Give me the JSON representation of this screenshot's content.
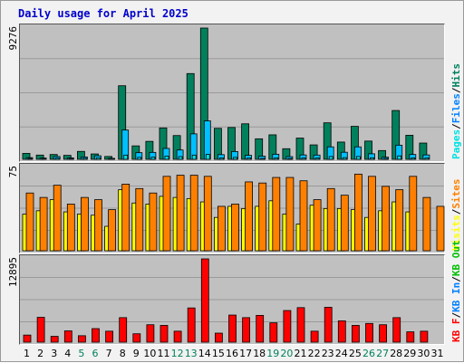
{
  "title": "Daily usage for April 2025",
  "colors": {
    "hits": "#00805c",
    "files": "#00c0ff",
    "pages": "#00e0e0",
    "visits": "#ffff00",
    "sites": "#ff8000",
    "kb_f": "#ff0000",
    "kb_in": "#0080ff",
    "kb_out": "#00c000",
    "weekend": "#00805c",
    "weekday": "#000000"
  },
  "chart_data": [
    {
      "type": "bar",
      "panel": "top",
      "y_max_label": "9276",
      "ylim": [
        0,
        9276
      ],
      "legend": [
        {
          "label": "Pages",
          "color": "#00e0e0"
        },
        {
          "label": "/",
          "color": "#000000"
        },
        {
          "label": "Files",
          "color": "#0080ff"
        },
        {
          "label": "/",
          "color": "#000000"
        },
        {
          "label": "Hits",
          "color": "#00805c"
        }
      ],
      "categories": [
        "1",
        "2",
        "3",
        "4",
        "5",
        "6",
        "7",
        "8",
        "9",
        "10",
        "11",
        "12",
        "13",
        "14",
        "15",
        "16",
        "17",
        "18",
        "19",
        "20",
        "21",
        "22",
        "23",
        "24",
        "25",
        "26",
        "27",
        "28",
        "29",
        "30",
        "31"
      ],
      "series": [
        {
          "name": "Hits",
          "values": [
            420,
            300,
            340,
            280,
            560,
            380,
            200,
            5200,
            950,
            1270,
            2220,
            1680,
            6060,
            9276,
            2190,
            2250,
            2510,
            1450,
            1730,
            750,
            1500,
            1020,
            2580,
            1220,
            2330,
            1290,
            620,
            3450,
            1700,
            1150,
            0
          ]
        },
        {
          "name": "Files",
          "values": [
            120,
            90,
            200,
            100,
            170,
            250,
            60,
            2070,
            470,
            490,
            770,
            660,
            1800,
            2720,
            330,
            550,
            280,
            220,
            360,
            190,
            310,
            300,
            880,
            500,
            880,
            390,
            150,
            1000,
            340,
            310,
            0
          ]
        },
        {
          "name": "Pages",
          "values": [
            60,
            45,
            90,
            50,
            80,
            110,
            30,
            300,
            140,
            150,
            220,
            190,
            300,
            350,
            100,
            140,
            90,
            70,
            100,
            60,
            90,
            90,
            200,
            120,
            200,
            110,
            50,
            240,
            100,
            90,
            0
          ]
        }
      ]
    },
    {
      "type": "bar",
      "panel": "middle",
      "y_max_label": "75",
      "ylim": [
        0,
        75
      ],
      "legend": [
        {
          "label": "Visits",
          "color": "#ffff00"
        },
        {
          "label": "/",
          "color": "#000000"
        },
        {
          "label": "Sites",
          "color": "#ff8000"
        }
      ],
      "categories": [
        "1",
        "2",
        "3",
        "4",
        "5",
        "6",
        "7",
        "8",
        "9",
        "10",
        "11",
        "12",
        "13",
        "14",
        "15",
        "16",
        "17",
        "18",
        "19",
        "20",
        "21",
        "22",
        "23",
        "24",
        "25",
        "26",
        "27",
        "28",
        "29",
        "30",
        "31"
      ],
      "series": [
        {
          "name": "Visits",
          "values": [
            33,
            36,
            46,
            35,
            33,
            32,
            22,
            55,
            43,
            42,
            49,
            48,
            47,
            44,
            30,
            40,
            38,
            40,
            45,
            33,
            24,
            41,
            38,
            38,
            37,
            30,
            36,
            44,
            35,
            0,
            0
          ]
        },
        {
          "name": "Sites",
          "values": [
            52,
            48,
            59,
            42,
            48,
            46,
            37,
            60,
            56,
            52,
            67,
            68,
            68,
            67,
            40,
            42,
            62,
            61,
            66,
            66,
            63,
            46,
            56,
            50,
            69,
            67,
            58,
            55,
            67,
            48,
            40
          ]
        }
      ]
    },
    {
      "type": "bar",
      "panel": "bottom",
      "y_max_label": "12895",
      "ylim": [
        0,
        12895
      ],
      "legend": [
        {
          "label": "KB F",
          "color": "#ff0000"
        },
        {
          "label": "/",
          "color": "#000000"
        },
        {
          "label": "KB In",
          "color": "#0080ff"
        },
        {
          "label": "/",
          "color": "#000000"
        },
        {
          "label": "KB Out",
          "color": "#00c000"
        }
      ],
      "categories": [
        "1",
        "2",
        "3",
        "4",
        "5",
        "6",
        "7",
        "8",
        "9",
        "10",
        "11",
        "12",
        "13",
        "14",
        "15",
        "16",
        "17",
        "18",
        "19",
        "20",
        "21",
        "22",
        "23",
        "24",
        "25",
        "26",
        "27",
        "28",
        "29",
        "30",
        "31"
      ],
      "series": [
        {
          "name": "KB F",
          "values": [
            1100,
            3850,
            900,
            1750,
            1000,
            2100,
            1700,
            3800,
            1300,
            2700,
            2600,
            1700,
            5300,
            12895,
            1400,
            4200,
            3800,
            4150,
            3000,
            4900,
            5350,
            1700,
            5400,
            3300,
            2600,
            2900,
            2700,
            3800,
            1600,
            1700,
            0
          ]
        }
      ]
    }
  ],
  "x_labels": [
    {
      "text": "1",
      "weekend": false
    },
    {
      "text": "2",
      "weekend": false
    },
    {
      "text": "3",
      "weekend": false
    },
    {
      "text": "4",
      "weekend": false
    },
    {
      "text": "5",
      "weekend": true
    },
    {
      "text": "6",
      "weekend": true
    },
    {
      "text": "7",
      "weekend": false
    },
    {
      "text": "8",
      "weekend": false
    },
    {
      "text": "9",
      "weekend": false
    },
    {
      "text": "10",
      "weekend": false
    },
    {
      "text": "11",
      "weekend": false
    },
    {
      "text": "12",
      "weekend": true
    },
    {
      "text": "13",
      "weekend": true
    },
    {
      "text": "14",
      "weekend": false
    },
    {
      "text": "15",
      "weekend": false
    },
    {
      "text": "16",
      "weekend": false
    },
    {
      "text": "17",
      "weekend": false
    },
    {
      "text": "18",
      "weekend": false
    },
    {
      "text": "19",
      "weekend": true
    },
    {
      "text": "20",
      "weekend": true
    },
    {
      "text": "21",
      "weekend": false
    },
    {
      "text": "22",
      "weekend": false
    },
    {
      "text": "23",
      "weekend": false
    },
    {
      "text": "24",
      "weekend": false
    },
    {
      "text": "25",
      "weekend": false
    },
    {
      "text": "26",
      "weekend": true
    },
    {
      "text": "27",
      "weekend": true
    },
    {
      "text": "28",
      "weekend": false
    },
    {
      "text": "29",
      "weekend": false
    },
    {
      "text": "30",
      "weekend": false
    },
    {
      "text": "31",
      "weekend": false
    }
  ]
}
